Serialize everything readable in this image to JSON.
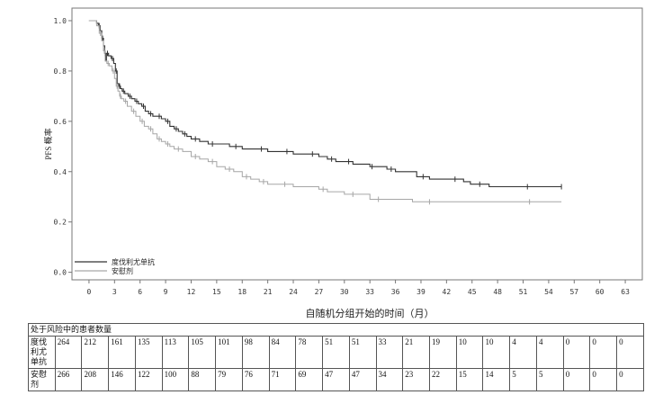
{
  "chart_data": {
    "type": "line",
    "subtype": "kaplan-meier",
    "title": "",
    "xlabel": "自随机分组开始的时间（月）",
    "ylabel": "PFS 概率",
    "xlim": [
      -2,
      65
    ],
    "ylim": [
      -0.03,
      1.05
    ],
    "x_ticks": [
      0,
      3,
      6,
      9,
      12,
      15,
      18,
      21,
      24,
      27,
      30,
      33,
      36,
      39,
      42,
      45,
      48,
      51,
      54,
      57,
      60,
      63
    ],
    "x_tick_labels": [
      "0",
      "3",
      "6",
      "9",
      "12",
      "15",
      "18",
      "21",
      "24",
      "27",
      "30",
      "33",
      "36",
      "39",
      "42",
      "45",
      "48",
      "51",
      "54",
      "57",
      "60",
      "63"
    ],
    "y_ticks": [
      0.0,
      0.2,
      0.4,
      0.6,
      0.8,
      1.0
    ],
    "y_tick_labels": [
      "0.0",
      "0.2",
      "0.4",
      "0.6",
      "0.8",
      "1.0"
    ],
    "legend_position": "bottom-left",
    "series": [
      {
        "name": "度伐利尤单抗",
        "color": "#333333",
        "x": [
          0,
          0.9,
          1.1,
          1.3,
          1.5,
          1.7,
          1.85,
          1.95,
          2.05,
          2.3,
          2.6,
          2.9,
          3.1,
          3.3,
          3.5,
          3.7,
          3.9,
          4.2,
          4.6,
          5.0,
          5.4,
          5.8,
          6.2,
          6.6,
          7.0,
          7.5,
          8.0,
          8.5,
          9.0,
          9.5,
          10.0,
          10.5,
          11.0,
          11.5,
          12.0,
          13.0,
          14.0,
          15.0,
          16.5,
          18.0,
          19.5,
          21.0,
          22.5,
          24.0,
          25.5,
          27.0,
          28.0,
          29.0,
          30.0,
          31.0,
          33.0,
          33.5,
          35.0,
          36.0,
          38.5,
          40.0,
          42.0,
          44.0,
          44.8,
          47.0,
          50.0,
          53.0,
          55.5
        ],
        "y": [
          1.0,
          0.99,
          0.98,
          0.96,
          0.93,
          0.9,
          0.87,
          0.84,
          0.87,
          0.86,
          0.85,
          0.83,
          0.8,
          0.75,
          0.74,
          0.73,
          0.72,
          0.71,
          0.7,
          0.69,
          0.68,
          0.67,
          0.66,
          0.64,
          0.63,
          0.62,
          0.62,
          0.61,
          0.6,
          0.58,
          0.57,
          0.56,
          0.55,
          0.54,
          0.53,
          0.52,
          0.51,
          0.51,
          0.5,
          0.49,
          0.49,
          0.48,
          0.48,
          0.47,
          0.47,
          0.46,
          0.45,
          0.44,
          0.44,
          0.43,
          0.42,
          0.42,
          0.41,
          0.4,
          0.38,
          0.37,
          0.37,
          0.36,
          0.35,
          0.34,
          0.34,
          0.34,
          0.34
        ]
      },
      {
        "name": "安慰剂",
        "color": "#a6a6a6",
        "x": [
          0,
          0.9,
          1.2,
          1.5,
          1.7,
          1.9,
          2.1,
          2.4,
          2.7,
          3.0,
          3.2,
          3.4,
          3.6,
          3.8,
          4.1,
          4.5,
          5.0,
          5.5,
          6.0,
          6.5,
          7.0,
          7.5,
          8.0,
          8.5,
          9.0,
          9.5,
          10.0,
          11.0,
          12.0,
          13.0,
          14.0,
          15.0,
          16.0,
          17.0,
          18.0,
          19.0,
          20.0,
          21.0,
          22.0,
          24.0,
          27.0,
          28.0,
          30.0,
          32.0,
          33.0,
          35.0,
          38.0,
          42.0,
          48.0,
          55.5
        ],
        "y": [
          1.0,
          0.98,
          0.95,
          0.92,
          0.88,
          0.84,
          0.83,
          0.82,
          0.8,
          0.77,
          0.74,
          0.72,
          0.7,
          0.69,
          0.68,
          0.66,
          0.64,
          0.62,
          0.6,
          0.58,
          0.57,
          0.55,
          0.53,
          0.52,
          0.51,
          0.5,
          0.49,
          0.48,
          0.46,
          0.45,
          0.44,
          0.42,
          0.41,
          0.4,
          0.38,
          0.37,
          0.36,
          0.35,
          0.35,
          0.34,
          0.33,
          0.32,
          0.31,
          0.31,
          0.29,
          0.29,
          0.28,
          0.28,
          0.28,
          0.28
        ]
      }
    ]
  },
  "risk_table": {
    "title": "处于风险中的患者数量",
    "rows": [
      {
        "label": "度伐利尤单抗",
        "values": [
          "264",
          "212",
          "161",
          "135",
          "113",
          "105",
          "101",
          "98",
          "84",
          "78",
          "51",
          "51",
          "33",
          "21",
          "19",
          "10",
          "10",
          "4",
          "4",
          "0",
          "0",
          "0"
        ]
      },
      {
        "label": "安慰剂",
        "values": [
          "266",
          "208",
          "146",
          "122",
          "100",
          "88",
          "79",
          "76",
          "71",
          "69",
          "47",
          "47",
          "34",
          "23",
          "22",
          "15",
          "14",
          "5",
          "5",
          "0",
          "0",
          "0"
        ]
      }
    ]
  }
}
